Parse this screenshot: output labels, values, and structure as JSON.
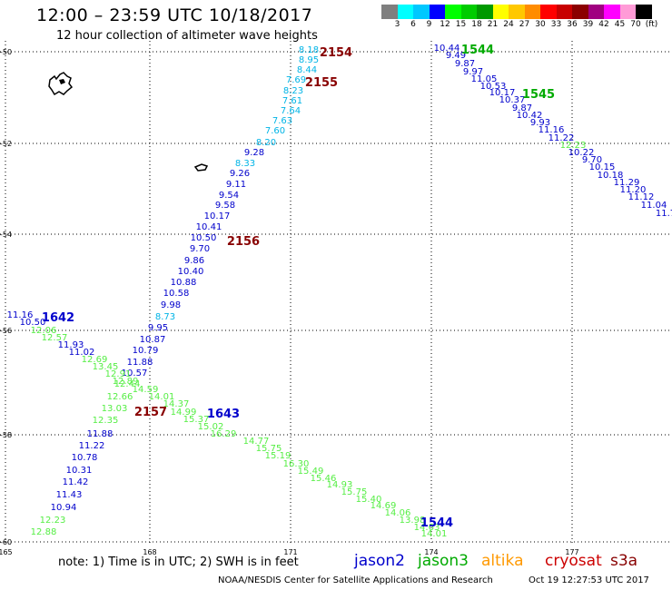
{
  "header": {
    "title": "12:00 – 23:59 UTC 10/18/2017",
    "subtitle": "12 hour collection of altimeter wave heights"
  },
  "legend": {
    "colors": [
      "#7f7f7f",
      "#00ffff",
      "#00c8ff",
      "#0000ff",
      "#00ff00",
      "#00cc00",
      "#009900",
      "#ffff00",
      "#ffc800",
      "#ff8c00",
      "#ff0000",
      "#c80000",
      "#8b0000",
      "#a00080",
      "#ff00ff",
      "#ff9bd7",
      "#000000"
    ],
    "labels": [
      "3",
      "6",
      "9",
      "12",
      "15",
      "18",
      "21",
      "24",
      "27",
      "30",
      "33",
      "36",
      "39",
      "42",
      "45",
      "70",
      "(ft)"
    ]
  },
  "axes": {
    "lat_labels": [
      "-50",
      "-52",
      "-54",
      "-56",
      "-58",
      "-60"
    ],
    "lon_labels": [
      "165",
      "168",
      "171",
      "174",
      "177"
    ]
  },
  "footer": {
    "note": "note: 1) Time is in UTC; 2) SWH is in feet",
    "satellites": [
      {
        "name": "jason2",
        "color": "#0000cc"
      },
      {
        "name": "jason3",
        "color": "#00aa00"
      },
      {
        "name": "altika",
        "color": "#ff9900"
      },
      {
        "name": "cryosat",
        "color": "#cc0000"
      },
      {
        "name": "s3a",
        "color": "#880000"
      }
    ],
    "credit": "NOAA/NESDIS Center for Satellite Applications and Research",
    "timestamp": "Oct 19 12:27:53 UTC 2017"
  },
  "pass_labels": [
    {
      "text": "2154",
      "color": "#880000"
    },
    {
      "text": "2155",
      "color": "#880000"
    },
    {
      "text": "2156",
      "color": "#880000"
    },
    {
      "text": "2157",
      "color": "#880000"
    },
    {
      "text": "1544",
      "color": "#00aa00"
    },
    {
      "text": "1545",
      "color": "#00aa00"
    },
    {
      "text": "1642",
      "color": "#0000cc"
    },
    {
      "text": "1643",
      "color": "#0000cc"
    },
    {
      "text": "1544",
      "color": "#0000cc"
    }
  ],
  "tracks": {
    "track_2154": {
      "values": [
        "8.18",
        "8.95",
        "8.44",
        "7.69",
        "8.23",
        "7.61",
        "7.64",
        "7.63",
        "7.60",
        "8.20",
        "9.28",
        "8.33",
        "9.26",
        "9.11",
        "9.54",
        "9.58",
        "10.17",
        "10.41",
        "10.50",
        "9.70",
        "9.86",
        "10.40",
        "10.88",
        "10.58",
        "9.98",
        "8.73",
        "9.95",
        "10.87",
        "10.79",
        "11.88",
        "10.57",
        "12.44",
        "12.66",
        "13.03",
        "12.35",
        "11.88",
        "11.22",
        "10.78",
        "10.31",
        "11.42",
        "11.43",
        "10.94",
        "12.23",
        "12.88"
      ]
    },
    "track_1544": {
      "values": [
        "10.44",
        "9.49",
        "9.87",
        "9.97",
        "11.05",
        "10.53",
        "10.17",
        "10.37",
        "9.87",
        "10.42",
        "9.93",
        "11.16",
        "11.22",
        "12.23",
        "10.22",
        "9.70",
        "10.15",
        "10.18",
        "11.29",
        "11.20",
        "11.12",
        "11.04",
        "11.7"
      ]
    },
    "track_1642": {
      "values": [
        "11.16",
        "10.50",
        "12.06",
        "12.57",
        "11.93",
        "11.02",
        "12.69",
        "13.45",
        "12.91",
        "12.89",
        "14.59",
        "14.01",
        "14.37",
        "14.99",
        "15.37",
        "15.02",
        "16.29",
        "14.77",
        "15.75",
        "15.19",
        "16.30",
        "15.49",
        "15.46",
        "14.93",
        "15.75",
        "15.40",
        "14.69",
        "14.06",
        "13.98",
        "14.63",
        "14.01"
      ]
    }
  }
}
